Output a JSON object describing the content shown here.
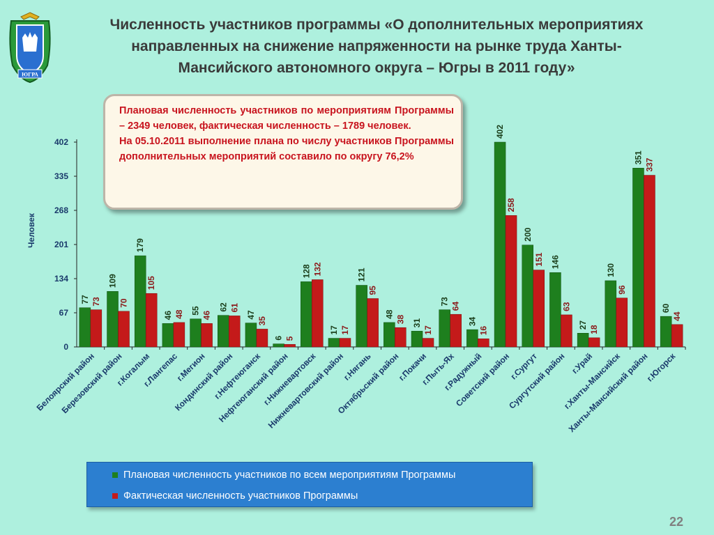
{
  "slide": {
    "title_lines": [
      "Численность участников программы «О дополнительных мероприятиях",
      "направленных на снижение напряженности на рынке труда Ханты-",
      "Мансийского автономного округа – Югры в 2011 году»"
    ],
    "info_lines": [
      "Плановая численность участников по мероприятиям Программы – 2349 человек, фактическая численность – 1789 человек.",
      "На 05.10.2011 выполнение плана по числу участников Программы дополнительных мероприятий составило по округу 76,2%"
    ],
    "emblem_text": "ЮГРА",
    "page_number": "22"
  },
  "colors": {
    "planned": "#1e7f1e",
    "actual": "#c41a1a",
    "planned_label": "#1a3e1a",
    "actual_label": "#8b1a1a",
    "axis_label": "#1a3a6b"
  },
  "chart_data": {
    "type": "bar",
    "ylabel": "Человек",
    "ylim": [
      0,
      402
    ],
    "yticks": [
      0,
      67,
      134,
      201,
      268,
      335,
      402
    ],
    "categories": [
      "Белоярский район",
      "Березовский район",
      "г.Когалым",
      "г.Лангепас",
      "г.Мегион",
      "Кондинский район",
      "г.Нефтеюганск",
      "Нефтеюганский район",
      "г.Нижневартовск",
      "Нижневартовский район",
      "г.Нягань",
      "Октябрьский район",
      "г.Покачи",
      "г.Пыть-Ях",
      "г.Радужный",
      "Советский район",
      "г.Сургут",
      "Сургутский район",
      "г.Урай",
      "г.Ханты-Мансийск",
      "Ханты-Мансийский район",
      "г.Югорск"
    ],
    "series": [
      {
        "name": "Плановая численность участников по всем мероприятиям Программы",
        "values": [
          77,
          109,
          179,
          46,
          55,
          62,
          47,
          6,
          128,
          17,
          121,
          48,
          31,
          73,
          34,
          402,
          200,
          146,
          27,
          130,
          351,
          60
        ]
      },
      {
        "name": "Фактическая численность участников Программы",
        "values": [
          73,
          70,
          105,
          48,
          46,
          61,
          35,
          5,
          132,
          17,
          95,
          38,
          17,
          64,
          16,
          258,
          151,
          63,
          18,
          96,
          337,
          44
        ]
      }
    ],
    "legend_position": "bottom"
  }
}
